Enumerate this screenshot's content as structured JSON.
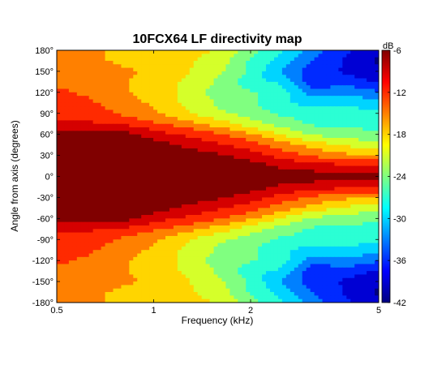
{
  "chart_data": {
    "type": "heatmap",
    "title": "10FCX64 LF directivity map",
    "xlabel": "Frequency (kHz)",
    "ylabel": "Angle from axis (degrees)",
    "x_scale": "log",
    "xlim": [
      0.5,
      5
    ],
    "ylim": [
      -180,
      180
    ],
    "x_ticks": [
      0.5,
      1,
      2,
      5
    ],
    "x_tick_labels": [
      "0.5",
      "1",
      "2",
      "5"
    ],
    "y_ticks": [
      180,
      150,
      120,
      90,
      60,
      30,
      0,
      -30,
      -60,
      -90,
      -120,
      -150,
      -180
    ],
    "y_tick_labels": [
      "180°",
      "150°",
      "120°",
      "90°",
      "60°",
      "30°",
      "0°",
      "-30°",
      "-60°",
      "-90°",
      "-120°",
      "-150°",
      "-180°"
    ],
    "colorbar": {
      "label": "dB",
      "range": [
        -42,
        -6
      ],
      "ticks": [
        -6,
        -12,
        -18,
        -24,
        -30,
        -36,
        -42
      ],
      "tick_labels": [
        "-6",
        "-12",
        "-18",
        "-24",
        "-30",
        "-36",
        "-42"
      ]
    },
    "frequencies_khz": [
      0.5,
      0.63,
      0.8,
      1.0,
      1.25,
      1.6,
      2.0,
      2.5,
      3.15,
      4.0,
      5.0
    ],
    "angles_deg": [
      0,
      15,
      30,
      45,
      60,
      75,
      90,
      105,
      120,
      135,
      150,
      165,
      180
    ],
    "levels_db": [
      [
        -6,
        -6,
        -6,
        -6,
        -6,
        -6,
        -6,
        -6,
        -6,
        -6,
        -6
      ],
      [
        -6,
        -6,
        -6,
        -6,
        -6,
        -6,
        -6,
        -8,
        -9,
        -10,
        -10
      ],
      [
        -6,
        -6,
        -6,
        -6,
        -6,
        -7,
        -9,
        -12,
        -14,
        -16,
        -17
      ],
      [
        -6,
        -6,
        -6,
        -6,
        -8,
        -10,
        -12,
        -15,
        -18,
        -20,
        -22
      ],
      [
        -6,
        -6,
        -6,
        -9,
        -11,
        -13,
        -16,
        -20,
        -23,
        -24,
        -25
      ],
      [
        -10,
        -10,
        -11,
        -13,
        -15,
        -18,
        -21,
        -24,
        -26,
        -26,
        -27
      ],
      [
        -11,
        -12,
        -14,
        -16,
        -19,
        -22,
        -24,
        -26,
        -27,
        -27,
        -28
      ],
      [
        -12,
        -13,
        -15,
        -17,
        -20,
        -23,
        -25,
        -28,
        -30,
        -29,
        -31
      ],
      [
        -13,
        -14,
        -16,
        -18,
        -20,
        -24,
        -25,
        -27,
        -33,
        -32,
        -34
      ],
      [
        -14,
        -15,
        -16,
        -18,
        -20,
        -23,
        -28,
        -29,
        -37,
        -36,
        -38
      ],
      [
        -14,
        -15,
        -16,
        -17,
        -19,
        -22,
        -26,
        -32,
        -36,
        -38,
        -40
      ],
      [
        -15,
        -16,
        -17,
        -17,
        -19,
        -21,
        -26,
        -30,
        -35,
        -38,
        -41
      ],
      [
        -15,
        -16,
        -17,
        -17,
        -18,
        -20,
        -24,
        -28,
        -33,
        -37,
        -40
      ]
    ]
  }
}
